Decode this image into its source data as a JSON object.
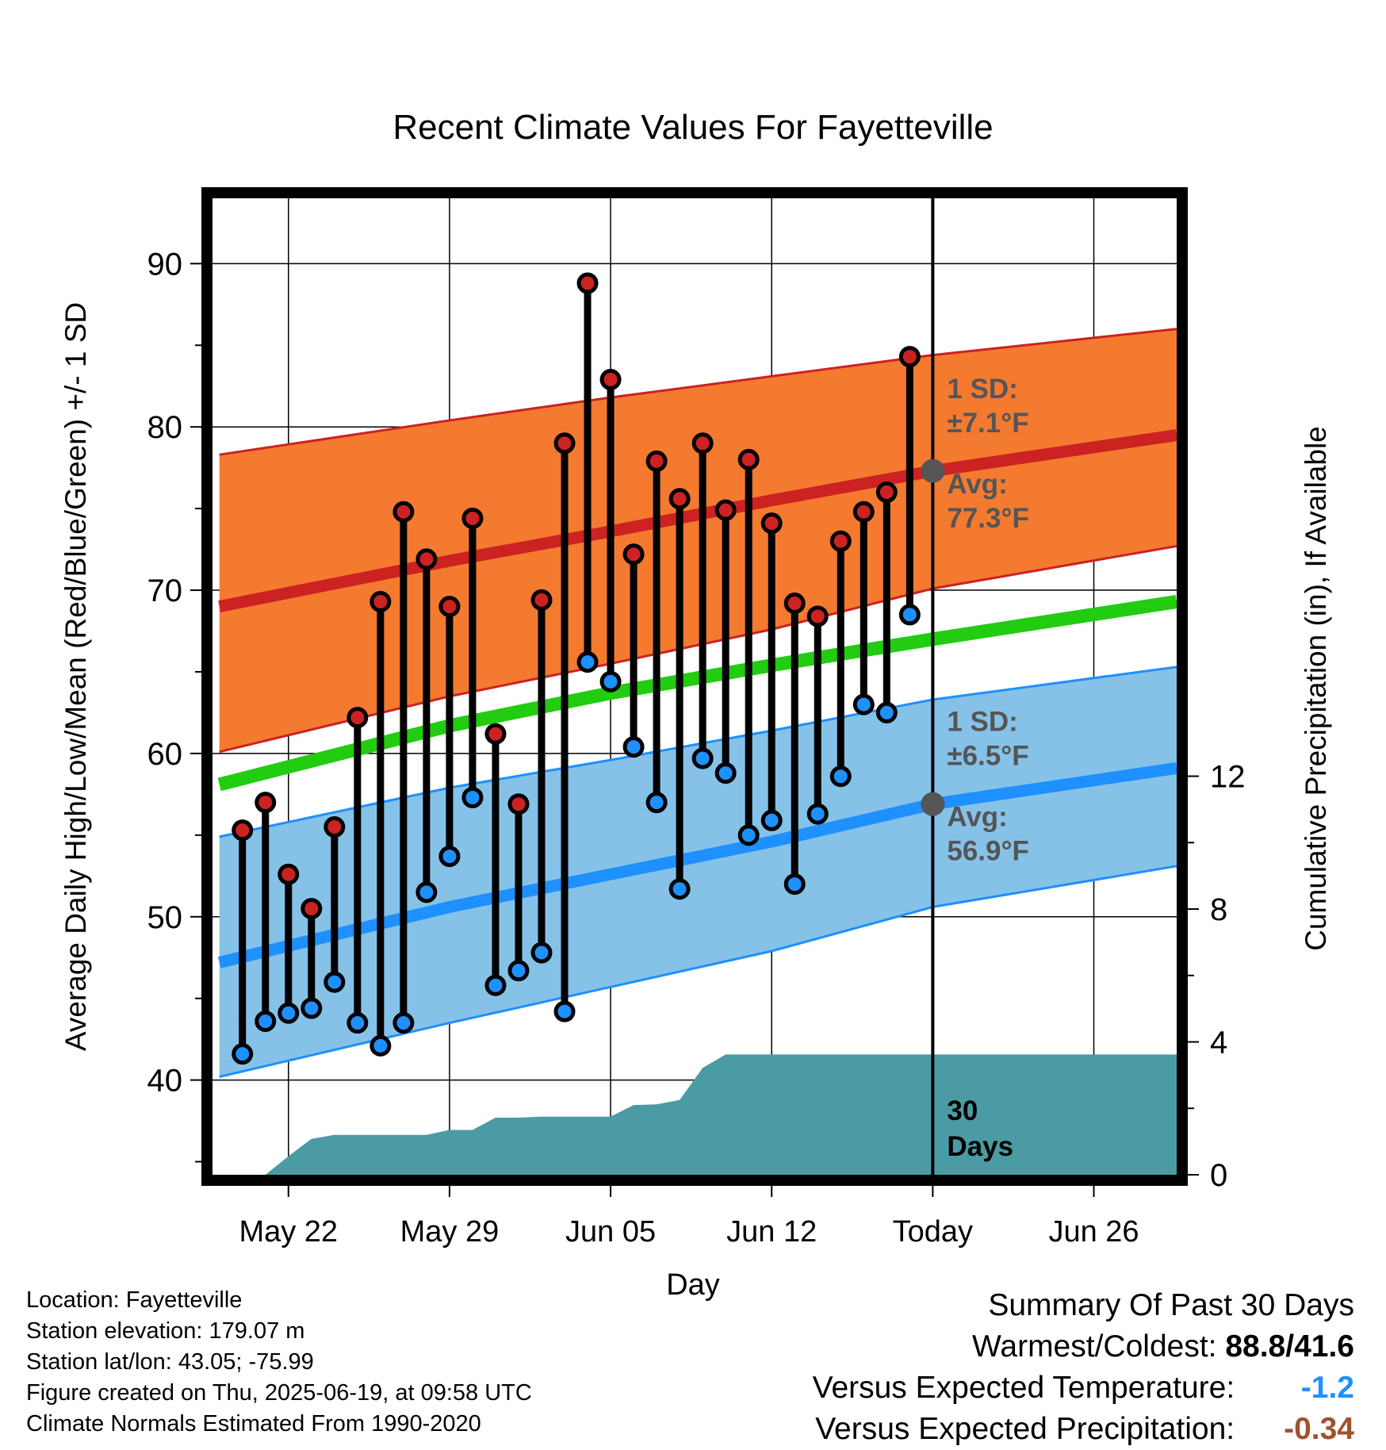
{
  "chart_data": {
    "type": "line",
    "title": "Recent Climate Values For Fayetteville",
    "xlabel": "Day",
    "ylabel": "Average Daily High/Low/Mean (Red/Blue/Green) +/- 1 SD",
    "y2label": "Cumulative Precipitation (in), If Available",
    "ylim": [
      34.2,
      94
    ],
    "y2lim": [
      0,
      29.4
    ],
    "yticks": [
      40,
      50,
      60,
      70,
      80,
      90
    ],
    "y2ticks": [
      0,
      4,
      8,
      12
    ],
    "xlim": [
      -3.3,
      38.6
    ],
    "xticks": [
      {
        "x": 0,
        "label": "May 22"
      },
      {
        "x": 7,
        "label": "May 29"
      },
      {
        "x": 14,
        "label": "Jun 05"
      },
      {
        "x": 21,
        "label": "Jun 12"
      },
      {
        "x": 28,
        "label": "Today"
      },
      {
        "x": 35,
        "label": "Jun 26"
      }
    ],
    "grid": true,
    "today_x": 28,
    "high_series": {
      "name": "High",
      "color": "#cc2222",
      "x": [
        -2,
        -1,
        0,
        1,
        2,
        3,
        4,
        5,
        6,
        7,
        8,
        9,
        10,
        11,
        12,
        13,
        14,
        15,
        16,
        17,
        18,
        19,
        20,
        21,
        22,
        23,
        24,
        25,
        26,
        27
      ],
      "values": [
        55.3,
        57.0,
        52.6,
        50.5,
        55.5,
        62.2,
        69.3,
        74.8,
        71.9,
        69.0,
        74.4,
        61.2,
        56.9,
        69.4,
        79.0,
        88.8,
        82.9,
        72.2,
        77.9,
        75.6,
        79.0,
        74.9,
        78.0,
        74.1,
        69.2,
        68.4,
        73.0,
        74.8,
        76.0,
        84.3
      ]
    },
    "low_series": {
      "name": "Low",
      "color": "#1e90ff",
      "x": [
        -2,
        -1,
        0,
        1,
        2,
        3,
        4,
        5,
        6,
        7,
        8,
        9,
        10,
        11,
        12,
        13,
        14,
        15,
        16,
        17,
        18,
        19,
        20,
        21,
        22,
        23,
        24,
        25,
        26,
        27
      ],
      "values": [
        41.6,
        43.6,
        44.1,
        44.4,
        46.0,
        43.5,
        42.1,
        43.5,
        51.5,
        53.7,
        57.3,
        45.8,
        46.7,
        47.8,
        44.2,
        65.6,
        64.4,
        60.4,
        57.0,
        51.7,
        59.7,
        58.8,
        55.0,
        55.9,
        52.0,
        56.3,
        58.6,
        63.0,
        62.5,
        68.5
      ]
    },
    "normals": {
      "x": [
        -3,
        7,
        14,
        21,
        28,
        38.6
      ],
      "high_avg": [
        69.0,
        71.8,
        73.6,
        75.5,
        77.3,
        79.5
      ],
      "high_upper": [
        78.3,
        80.4,
        81.8,
        83.1,
        84.4,
        86.0
      ],
      "high_lower": [
        60.1,
        63.5,
        65.5,
        67.6,
        70.1,
        72.7
      ],
      "mean_avg": [
        58.1,
        61.7,
        63.7,
        65.4,
        67.0,
        69.3
      ],
      "low_avg": [
        47.2,
        50.6,
        52.6,
        54.6,
        56.9,
        59.1
      ],
      "low_upper": [
        54.9,
        57.9,
        59.6,
        61.4,
        63.3,
        65.3
      ],
      "low_lower": [
        40.2,
        43.5,
        45.7,
        47.9,
        50.6,
        53.1
      ]
    },
    "colors": {
      "high_band": "#f47a30",
      "high_line": "#cc2222",
      "mean_line": "#22cc11",
      "low_band": "#86c2e8",
      "low_line": "#1e90ff",
      "precip": "#4a9ba4",
      "avg_dot": "#555555"
    },
    "precip": {
      "name": "Cumulative Precipitation",
      "color": "#4a9ba4",
      "x": [
        -1,
        0,
        1,
        2,
        3,
        4,
        5,
        6,
        7,
        8,
        9,
        10,
        11,
        12,
        13,
        14,
        15,
        16,
        17,
        18,
        19,
        20,
        21,
        22,
        23,
        24,
        25,
        26,
        27,
        28,
        29,
        30,
        31,
        32,
        33,
        34,
        35,
        36,
        37,
        38.6
      ],
      "values": [
        0.0,
        0.56,
        1.08,
        1.2,
        1.2,
        1.2,
        1.2,
        1.2,
        1.35,
        1.35,
        1.72,
        1.72,
        1.75,
        1.75,
        1.75,
        1.75,
        2.1,
        2.12,
        2.25,
        3.22,
        3.62,
        3.62,
        3.62,
        3.62,
        3.62,
        3.62,
        3.62,
        3.62,
        3.62,
        3.62,
        3.62,
        3.62,
        3.62,
        3.62,
        3.62,
        3.62,
        3.62,
        3.62,
        3.62,
        3.62
      ]
    },
    "annotations": {
      "high_sd_label": "1 SD:",
      "high_sd_value": "±7.1°F",
      "high_avg_label": "Avg:",
      "high_avg_value": "77.3°F",
      "low_sd_label": "1 SD:",
      "low_sd_value": "±6.5°F",
      "low_avg_label": "Avg:",
      "low_avg_value": "56.9°F",
      "period_number": "30",
      "period_unit": "Days"
    }
  },
  "footer_left": {
    "location": "Location: Fayetteville",
    "elevation": "Station elevation: 179.07 m",
    "latlon": "Station lat/lon: 43.05; -75.99",
    "created": "Figure created on Thu, 2025-06-19, at 09:58 UTC",
    "normals": "Climate Normals Estimated From 1990-2020"
  },
  "summary": {
    "title": "Summary Of Past 30 Days",
    "warm_cold_label": "Warmest/Coldest:",
    "warm_cold_value": "88.8/41.6",
    "temp_label": "Versus Expected Temperature:",
    "temp_value": "-1.2",
    "temp_color": "#1e90ff",
    "precip_label": "Versus Expected Precipitation:",
    "precip_value": "-0.34",
    "precip_color": "#a0522d"
  }
}
